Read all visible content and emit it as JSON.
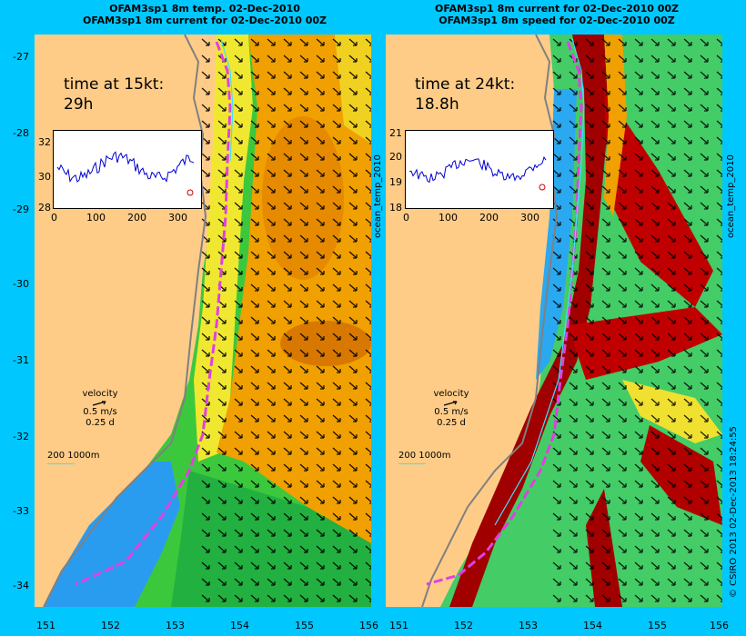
{
  "left_panel": {
    "title_line1": "OFAM3sp1 8m temp. 02-Dec-2010",
    "title_line2": "OFAM3sp1 8m current for 02-Dec-2010 00Z",
    "time_label_line1": "time at 15kt:",
    "time_label_line2": "29h",
    "inset_y_ticks": [
      "32",
      "30",
      "28"
    ],
    "inset_x_ticks": [
      "0",
      "100",
      "200",
      "300"
    ],
    "colorbar_label": "ocean_temp_2010"
  },
  "right_panel": {
    "title_line1": "OFAM3sp1 8m current for 02-Dec-2010 00Z",
    "title_line2": "OFAM3sp1 8m speed for 02-Dec-2010 00Z",
    "time_label_line1": "time at 24kt:",
    "time_label_line2": "18.8h",
    "inset_y_ticks": [
      "21",
      "20",
      "19",
      "18"
    ],
    "inset_x_ticks": [
      "0",
      "100",
      "200",
      "300"
    ],
    "colorbar_label": "ocean_temp_2010"
  },
  "legend": {
    "velocity_label": "velocity",
    "speed_label": "0.5 m/s",
    "time_label": "0.25 d",
    "isobath_label": "200  1000m"
  },
  "axes": {
    "lat_ticks": [
      "-27",
      "-28",
      "-29",
      "-30",
      "-31",
      "-32",
      "-33",
      "-34"
    ],
    "lon_ticks_left": [
      "151",
      "152",
      "153",
      "154",
      "155",
      "156"
    ],
    "lon_ticks_right": [
      "151",
      "152",
      "153",
      "154",
      "155",
      "156"
    ]
  },
  "credit": "© CSIRO 2013   02-Dec-2013 18:24:55",
  "colors": {
    "background": "#00c8ff",
    "land": "#ffcc88",
    "track": "#e040e0"
  }
}
